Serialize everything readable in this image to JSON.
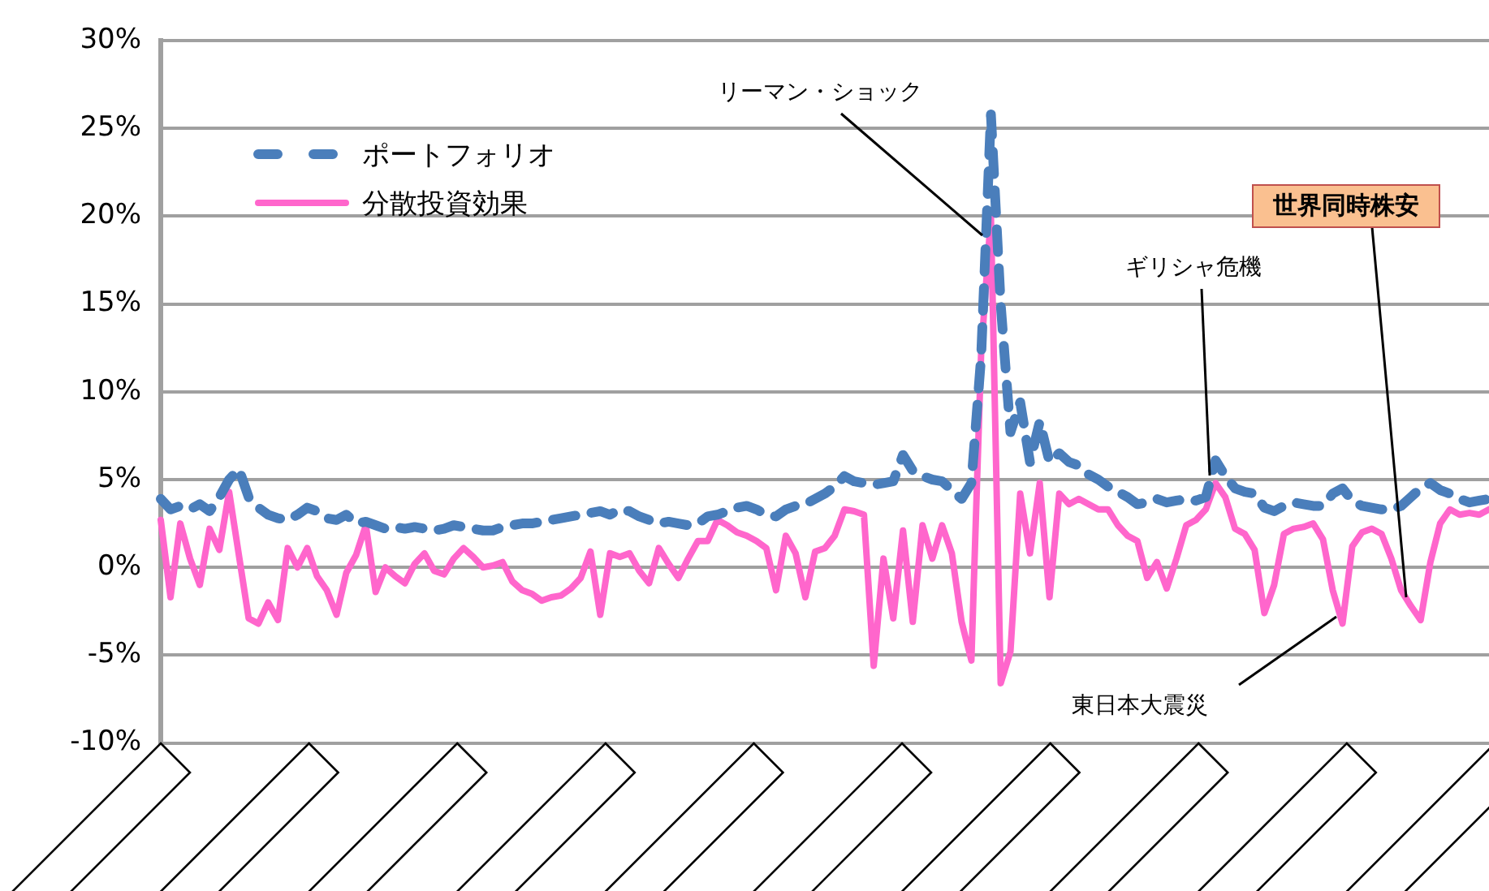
{
  "chart_data": {
    "type": "line",
    "categories": [
      null,
      null,
      null,
      null,
      null,
      null,
      null,
      null,
      null,
      null,
      null,
      null,
      null,
      null,
      null,
      null,
      null,
      null,
      null,
      null,
      null,
      null,
      null,
      null,
      null,
      null,
      null,
      null,
      null,
      null,
      null,
      null,
      null,
      null,
      null,
      null,
      null,
      null,
      null,
      null,
      null,
      null,
      null,
      null,
      null,
      null,
      null,
      null,
      null,
      null,
      null,
      null,
      null,
      null,
      null,
      null,
      null,
      null,
      null,
      null,
      null,
      null,
      null,
      null,
      null,
      null,
      null,
      null,
      null,
      null,
      null,
      null,
      null,
      null,
      null,
      null,
      null,
      null,
      null,
      null,
      null,
      null,
      null,
      null,
      null,
      null,
      null,
      null,
      null,
      null,
      null,
      null,
      null,
      null,
      null,
      null,
      null,
      null,
      null,
      null,
      null,
      null,
      null,
      null,
      null,
      null,
      null,
      null,
      null,
      null,
      null,
      null,
      null,
      null,
      null,
      null,
      null,
      null,
      null,
      null,
      null,
      null,
      null,
      null,
      null,
      null,
      null,
      null,
      null,
      null,
      null,
      null,
      null,
      null,
      null,
      null,
      null
    ],
    "series": [
      {
        "name": "ポートフォリオ",
        "color": "#4a7ebb",
        "line_style": "dashed",
        "values": [
          3.9,
          3.3,
          3.5,
          3.3,
          3.6,
          3.2,
          4.0,
          5.0,
          5.6,
          4.0,
          3.4,
          3.0,
          2.8,
          2.7,
          3.0,
          3.4,
          3.2,
          2.8,
          2.7,
          3.0,
          2.5,
          2.6,
          2.4,
          2.2,
          2.3,
          2.2,
          2.3,
          2.2,
          2.1,
          2.2,
          2.4,
          2.3,
          2.2,
          2.1,
          2.1,
          2.3,
          2.4,
          2.5,
          2.5,
          2.6,
          2.7,
          2.8,
          2.9,
          3.0,
          3.1,
          3.2,
          3.0,
          3.3,
          3.2,
          2.9,
          2.7,
          2.5,
          2.6,
          2.5,
          2.4,
          2.5,
          2.9,
          3.0,
          3.2,
          3.4,
          3.5,
          3.3,
          3.0,
          2.9,
          3.3,
          3.5,
          3.6,
          3.9,
          4.2,
          4.6,
          5.2,
          4.9,
          4.8,
          4.7,
          4.8,
          4.9,
          6.4,
          5.5,
          5.2,
          5.0,
          4.9,
          4.4,
          3.9,
          4.8,
          12.0,
          25.8,
          15.0,
          7.7,
          9.4,
          6.0,
          8.3,
          6.0,
          6.5,
          6.0,
          5.8,
          5.3,
          5.0,
          4.6,
          4.3,
          4.0,
          3.6,
          3.7,
          3.9,
          3.7,
          3.8,
          3.9,
          3.8,
          4.0,
          6.1,
          5.2,
          4.5,
          4.3,
          4.2,
          3.4,
          3.2,
          3.5,
          3.7,
          3.6,
          3.5,
          3.5,
          4.2,
          4.5,
          3.8,
          3.5,
          3.4,
          3.3,
          3.3,
          3.5,
          4.0,
          4.5,
          4.8,
          4.4,
          4.2,
          3.9,
          3.7,
          3.8,
          3.9
        ]
      },
      {
        "name": "分散投資効果",
        "color": "#ff66cc",
        "line_style": "solid",
        "values": [
          2.7,
          -1.7,
          2.5,
          0.5,
          -1.0,
          2.2,
          1.0,
          4.3,
          0.7,
          -2.9,
          -3.2,
          -2.0,
          -3.0,
          1.1,
          0.0,
          1.1,
          -0.5,
          -1.3,
          -2.7,
          -0.3,
          0.7,
          2.4,
          -1.4,
          0.0,
          -0.5,
          -0.9,
          0.2,
          0.8,
          -0.2,
          -0.4,
          0.5,
          1.1,
          0.6,
          0.0,
          0.1,
          0.3,
          -0.8,
          -1.3,
          -1.5,
          -1.9,
          -1.7,
          -1.6,
          -1.2,
          -0.6,
          0.9,
          -2.7,
          0.8,
          0.6,
          0.8,
          -0.2,
          -0.9,
          1.1,
          0.2,
          -0.6,
          0.5,
          1.5,
          1.5,
          2.7,
          2.4,
          2.0,
          1.8,
          1.5,
          1.1,
          -1.3,
          1.8,
          0.8,
          -1.7,
          0.9,
          1.1,
          1.8,
          3.3,
          3.2,
          3.0,
          -5.6,
          0.5,
          -2.9,
          2.1,
          -3.1,
          2.4,
          0.5,
          2.4,
          0.8,
          -3.1,
          -5.3,
          12.2,
          20.0,
          -6.6,
          -4.8,
          4.2,
          0.8,
          4.8,
          -1.7,
          4.2,
          3.6,
          3.9,
          3.6,
          3.3,
          3.3,
          2.4,
          1.8,
          1.5,
          -0.6,
          0.3,
          -1.2,
          0.5,
          2.4,
          2.7,
          3.3,
          4.8,
          4.0,
          2.2,
          1.9,
          1.0,
          -2.6,
          -1.0,
          1.9,
          2.2,
          2.3,
          2.5,
          1.6,
          -1.3,
          -3.2,
          1.2,
          2.0,
          2.2,
          1.9,
          0.5,
          -1.3,
          -2.2,
          -3.0,
          0.3,
          2.5,
          3.3,
          3.0,
          3.1,
          3.0,
          3.3
        ]
      }
    ],
    "ylim": [
      -10,
      30
    ],
    "yticks": [
      {
        "value": -10,
        "label": "-10%"
      },
      {
        "value": -5,
        "label": "-5%"
      },
      {
        "value": 0,
        "label": "0%"
      },
      {
        "value": 5,
        "label": "5%"
      },
      {
        "value": 10,
        "label": "10%"
      },
      {
        "value": 15,
        "label": "15%"
      },
      {
        "value": 20,
        "label": "20%"
      },
      {
        "value": 25,
        "label": "25%"
      },
      {
        "value": 30,
        "label": "30%"
      }
    ],
    "grid": "y",
    "legend": "top left",
    "marker": "none",
    "tick_labels": "y",
    "annotations": [
      "リーマン・ショック",
      "ギリシャ危機",
      "世界同時株安",
      "東日本大震災"
    ]
  }
}
